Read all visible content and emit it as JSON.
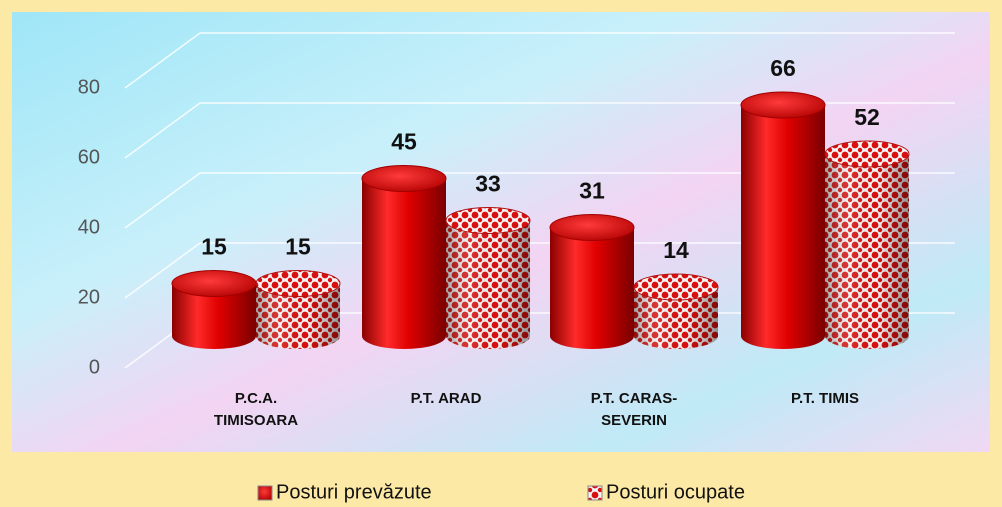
{
  "chart_data": {
    "type": "bar",
    "categories": [
      "P.C.A. TIMISOARA",
      "P.T. ARAD",
      "P.T. CARAS-SEVERIN",
      "P.T. TIMIS"
    ],
    "series": [
      {
        "name": "Posturi prevăzute",
        "color": "#d40000",
        "values": [
          15,
          45,
          31,
          66
        ]
      },
      {
        "name": "Posturi ocupate",
        "color": "#e03030",
        "values": [
          15,
          33,
          14,
          52
        ]
      }
    ],
    "ylim": [
      0,
      80
    ],
    "yticks": [
      0,
      20,
      40,
      60,
      80
    ],
    "grid": true
  }
}
